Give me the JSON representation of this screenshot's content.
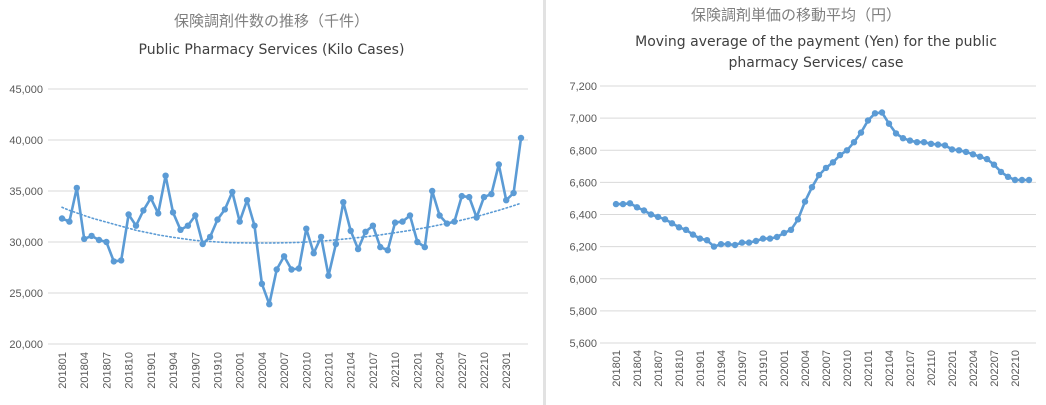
{
  "left_chart": {
    "title_ja": "保険調剤件数の推移（千件）",
    "title_en": "Public Pharmacy Services (Kilo Cases)"
  },
  "right_chart": {
    "title_ja": "保険調剤単価の移動平均（円）",
    "title_en": "Moving average of the payment (Yen) for the public pharmacy Services/ case"
  },
  "colors": {
    "series": "#5b9bd5",
    "grid": "#d9d9d9",
    "text": "#595959"
  },
  "chart_data": [
    {
      "type": "line",
      "title": "保険調剤件数の推移（千件）",
      "subtitle": "Public Pharmacy Services (Kilo Cases)",
      "xlabel": "",
      "ylabel": "",
      "ylim": [
        20000,
        45000
      ],
      "yticks": [
        "20,000",
        "25,000",
        "30,000",
        "35,000",
        "40,000",
        "45,000"
      ],
      "x_tick_labels": [
        "201801",
        "201804",
        "201807",
        "201810",
        "201901",
        "201904",
        "201907",
        "201910",
        "202001",
        "202004",
        "202007",
        "202010",
        "202101",
        "202104",
        "202107",
        "202110",
        "202201",
        "202204",
        "202207",
        "202210",
        "202301"
      ],
      "x": [
        "201801",
        "201802",
        "201803",
        "201804",
        "201805",
        "201806",
        "201807",
        "201808",
        "201809",
        "201810",
        "201811",
        "201812",
        "201901",
        "201902",
        "201903",
        "201904",
        "201905",
        "201906",
        "201907",
        "201908",
        "201909",
        "201910",
        "201911",
        "201912",
        "202001",
        "202002",
        "202003",
        "202004",
        "202005",
        "202006",
        "202007",
        "202008",
        "202009",
        "202010",
        "202011",
        "202012",
        "202101",
        "202102",
        "202103",
        "202104",
        "202105",
        "202106",
        "202107",
        "202108",
        "202109",
        "202110",
        "202111",
        "202112",
        "202201",
        "202202",
        "202203",
        "202204",
        "202205",
        "202206",
        "202207",
        "202208",
        "202209",
        "202210",
        "202211",
        "202212",
        "202301",
        "202302",
        "202303"
      ],
      "series": [
        {
          "values": [
            32300,
            32000,
            35300,
            30300,
            30600,
            30200,
            30000,
            28100,
            28200,
            32700,
            31600,
            33100,
            34300,
            32800,
            36500,
            32900,
            31200,
            31600,
            32600,
            29800,
            30500,
            32200,
            33200,
            34900,
            32000,
            34100,
            31600,
            25900,
            23900,
            27300,
            28600,
            27300,
            27400,
            31300,
            28900,
            30500,
            26700,
            29800,
            33900,
            31100,
            29300,
            31000,
            31600,
            29500,
            29200,
            31900,
            32000,
            32600,
            30000,
            29500,
            35000,
            32600,
            31800,
            32000,
            34500,
            34400,
            32400,
            34400,
            34700,
            37600,
            34100,
            34800,
            40200
          ]
        },
        {
          "trendline": true,
          "values": [
            33400,
            33100,
            32850,
            32600,
            32350,
            32150,
            31950,
            31750,
            31550,
            31350,
            31150,
            31000,
            30850,
            30700,
            30580,
            30460,
            30350,
            30250,
            30160,
            30100,
            30050,
            30000,
            29960,
            29930,
            29920,
            29910,
            29900,
            29900,
            29900,
            29910,
            29920,
            29940,
            29960,
            30000,
            30040,
            30090,
            30150,
            30210,
            30280,
            30350,
            30430,
            30510,
            30600,
            30700,
            30800,
            30910,
            31020,
            31140,
            31260,
            31390,
            31530,
            31680,
            31830,
            31990,
            32150,
            32320,
            32500,
            32700,
            32900,
            33110,
            33330,
            33560,
            33800
          ]
        }
      ]
    },
    {
      "type": "line",
      "title": "保険調剤単価の移動平均（円）",
      "subtitle": "Moving average of the payment (Yen) for the public pharmacy Services/ case",
      "xlabel": "",
      "ylabel": "",
      "ylim": [
        5600,
        7200
      ],
      "yticks": [
        "5,600",
        "5,800",
        "6,000",
        "6,200",
        "6,400",
        "6,600",
        "6,800",
        "7,000",
        "7,200"
      ],
      "x_tick_labels": [
        "201801",
        "201804",
        "201807",
        "201810",
        "201901",
        "201904",
        "201907",
        "201910",
        "202001",
        "202004",
        "202007",
        "202010",
        "202101",
        "202104",
        "202107",
        "202110",
        "202201",
        "202204",
        "202207",
        "202210"
      ],
      "x": [
        "201801",
        "201802",
        "201803",
        "201804",
        "201805",
        "201806",
        "201807",
        "201808",
        "201809",
        "201810",
        "201811",
        "201812",
        "201901",
        "201902",
        "201903",
        "201904",
        "201905",
        "201906",
        "201907",
        "201908",
        "201909",
        "201910",
        "201911",
        "201912",
        "202001",
        "202002",
        "202003",
        "202004",
        "202005",
        "202006",
        "202007",
        "202008",
        "202009",
        "202010",
        "202011",
        "202012",
        "202101",
        "202102",
        "202103",
        "202104",
        "202105",
        "202106",
        "202107",
        "202108",
        "202109",
        "202110",
        "202111",
        "202112",
        "202201",
        "202202",
        "202203",
        "202204",
        "202205",
        "202206",
        "202207",
        "202208",
        "202209",
        "202210",
        "202211",
        "202212"
      ],
      "series": [
        {
          "values": [
            6465,
            6465,
            6470,
            6445,
            6425,
            6400,
            6385,
            6370,
            6345,
            6320,
            6305,
            6275,
            6250,
            6240,
            6200,
            6215,
            6215,
            6210,
            6225,
            6225,
            6235,
            6250,
            6250,
            6260,
            6285,
            6305,
            6370,
            6480,
            6570,
            6645,
            6690,
            6725,
            6770,
            6800,
            6850,
            6910,
            6985,
            7030,
            7035,
            6965,
            6905,
            6875,
            6860,
            6850,
            6850,
            6840,
            6835,
            6830,
            6805,
            6800,
            6790,
            6775,
            6760,
            6745,
            6710,
            6665,
            6635,
            6615,
            6615,
            6615
          ]
        }
      ]
    }
  ]
}
